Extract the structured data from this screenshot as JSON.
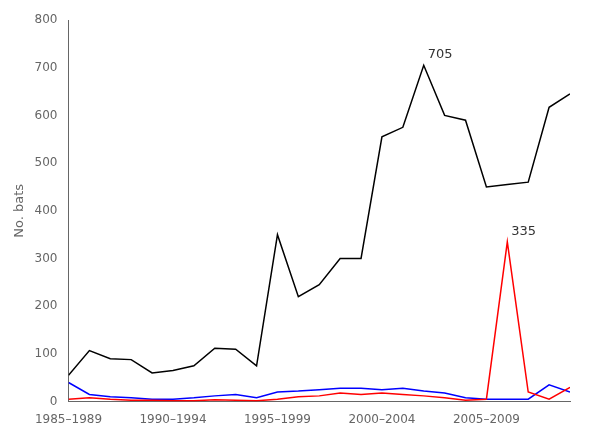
{
  "chart_data": {
    "type": "line",
    "ylabel": "No. bats",
    "x": [
      1985,
      1986,
      1987,
      1988,
      1989,
      1990,
      1991,
      1992,
      1993,
      1994,
      1995,
      1996,
      1997,
      1998,
      1999,
      2000,
      2001,
      2002,
      2003,
      2004,
      2005,
      2006,
      2007,
      2008,
      2009
    ],
    "series": [
      {
        "color": "#000000",
        "values": [
          55,
          107,
          90,
          88,
          60,
          65,
          75,
          112,
          110,
          75,
          350,
          220,
          245,
          300,
          300,
          555,
          575,
          705,
          600,
          590,
          450,
          455,
          460,
          617,
          645
        ]
      },
      {
        "color": "#ff0000",
        "values": [
          5,
          8,
          5,
          3,
          3,
          2,
          2,
          4,
          3,
          2,
          5,
          10,
          12,
          18,
          15,
          18,
          15,
          12,
          8,
          3,
          5,
          335,
          20,
          5,
          30
        ]
      },
      {
        "color": "#0000ff",
        "values": [
          40,
          15,
          10,
          8,
          5,
          5,
          8,
          12,
          15,
          8,
          20,
          22,
          25,
          28,
          28,
          25,
          28,
          22,
          18,
          8,
          5,
          5,
          5,
          35,
          20
        ]
      }
    ],
    "xlim": [
      1985,
      2009
    ],
    "xticks": [
      {
        "value": 1985,
        "label": "1985–1989"
      },
      {
        "value": 1990,
        "label": "1990–1994"
      },
      {
        "value": 1995,
        "label": "1995–1999"
      },
      {
        "value": 2000,
        "label": "2000–2004"
      },
      {
        "value": 2005,
        "label": "2005–2009"
      }
    ],
    "ylim": [
      0,
      800
    ],
    "yticks": [
      0,
      100,
      200,
      300,
      400,
      500,
      600,
      700,
      800
    ],
    "grid": false,
    "annotations": [
      {
        "text": "705",
        "x": 2002,
        "y": 705
      },
      {
        "text": "335",
        "x": 2006,
        "y": 335
      }
    ]
  }
}
